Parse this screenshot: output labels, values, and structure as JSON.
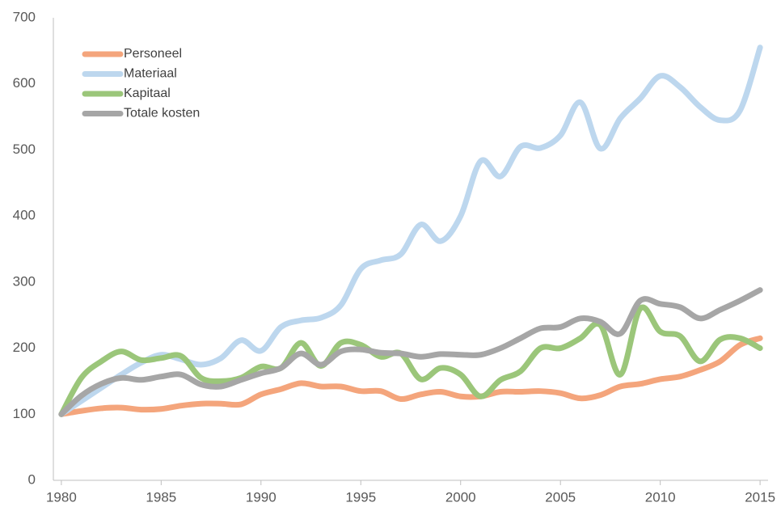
{
  "chart_data": {
    "type": "line",
    "x": [
      1980,
      1981,
      1982,
      1983,
      1984,
      1985,
      1986,
      1987,
      1988,
      1989,
      1990,
      1991,
      1992,
      1993,
      1994,
      1995,
      1996,
      1997,
      1998,
      1999,
      2000,
      2001,
      2002,
      2003,
      2004,
      2005,
      2006,
      2007,
      2008,
      2009,
      2010,
      2011,
      2012,
      2013,
      2014,
      2015
    ],
    "series": [
      {
        "name": "Personeel",
        "color": "#f4a57c",
        "values": [
          100,
          105,
          109,
          110,
          107,
          108,
          113,
          116,
          116,
          115,
          130,
          138,
          147,
          142,
          142,
          135,
          135,
          123,
          130,
          134,
          127,
          127,
          134,
          134,
          135,
          132,
          124,
          129,
          142,
          146,
          153,
          157,
          167,
          180,
          205,
          215
        ]
      },
      {
        "name": "Materiaal",
        "color": "#bdd7ee",
        "values": [
          100,
          120,
          140,
          160,
          178,
          190,
          183,
          175,
          185,
          212,
          196,
          232,
          242,
          246,
          265,
          320,
          333,
          342,
          387,
          362,
          400,
          483,
          460,
          505,
          503,
          522,
          572,
          502,
          548,
          578,
          612,
          595,
          565,
          545,
          560,
          655
        ]
      },
      {
        "name": "Kapitaal",
        "color": "#9bc67a",
        "values": [
          100,
          155,
          180,
          195,
          182,
          185,
          188,
          155,
          150,
          155,
          172,
          170,
          208,
          173,
          208,
          205,
          187,
          192,
          153,
          170,
          160,
          127,
          152,
          165,
          200,
          200,
          215,
          235,
          160,
          260,
          225,
          218,
          180,
          213,
          215,
          200
        ]
      },
      {
        "name": "Totale kosten",
        "color": "#a6a6a6",
        "values": [
          100,
          128,
          146,
          155,
          152,
          157,
          160,
          145,
          142,
          152,
          162,
          170,
          192,
          175,
          195,
          198,
          193,
          192,
          187,
          191,
          190,
          190,
          200,
          215,
          230,
          232,
          245,
          240,
          222,
          272,
          267,
          262,
          245,
          258,
          272,
          288
        ]
      }
    ],
    "xlim": [
      1979.6,
      2015.4
    ],
    "xticks": [
      1980,
      1985,
      1990,
      1995,
      2000,
      2005,
      2010,
      2015
    ],
    "ylim": [
      0,
      700
    ],
    "yticks": [
      0,
      100,
      200,
      300,
      400,
      500,
      600,
      700
    ],
    "legend": "upper left"
  }
}
